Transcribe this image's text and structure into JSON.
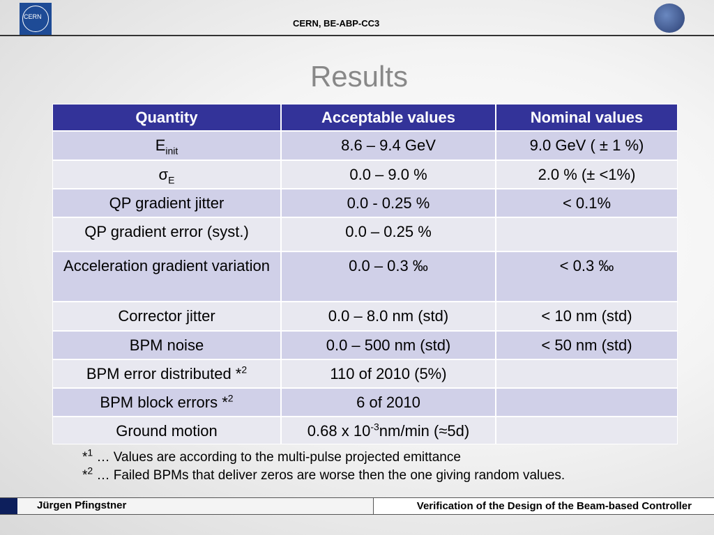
{
  "header": {
    "logo_text": "CERN",
    "org": "CERN, BE-ABP-CC3"
  },
  "title": "Results",
  "table": {
    "columns": [
      "Quantity",
      "Acceptable values",
      "Nominal values"
    ],
    "rows": [
      [
        [
          {
            "t": "E"
          },
          {
            "t": "init",
            "s": "sub"
          }
        ],
        [
          {
            "t": "8.6 – 9.4 GeV"
          }
        ],
        [
          {
            "t": "9.0 GeV (   ± 1 %)"
          }
        ]
      ],
      [
        [
          {
            "t": "σ"
          },
          {
            "t": "E",
            "s": "sub"
          }
        ],
        [
          {
            "t": "0.0 – 9.0 %"
          }
        ],
        [
          {
            "t": "2.0 % (± <1%)"
          }
        ]
      ],
      [
        [
          {
            "t": "QP gradient jitter"
          }
        ],
        [
          {
            "t": "0.0 - 0.25 %"
          }
        ],
        [
          {
            "t": "< 0.1%"
          }
        ]
      ],
      [
        [
          {
            "t": "QP gradient error (syst.)"
          }
        ],
        [
          {
            "t": "0.0 – 0.25 %"
          }
        ],
        []
      ],
      [
        [
          {
            "t": "Acceleration gradient variation"
          }
        ],
        [
          {
            "t": "0.0 – 0.3 ‰"
          }
        ],
        [
          {
            "t": "< 0.3 ‰"
          }
        ]
      ],
      [
        [
          {
            "t": "Corrector jitter"
          }
        ],
        [
          {
            "t": "0.0 – 8.0 nm (std)"
          }
        ],
        [
          {
            "t": "< 10 nm (std)"
          }
        ]
      ],
      [
        [
          {
            "t": "BPM noise"
          }
        ],
        [
          {
            "t": "0.0 – 500 nm (std)"
          }
        ],
        [
          {
            "t": "< 50 nm (std)"
          }
        ]
      ],
      [
        [
          {
            "t": "BPM error distributed *"
          },
          {
            "t": "2",
            "s": "sup"
          }
        ],
        [
          {
            "t": "110 of 2010 (5%)"
          }
        ],
        []
      ],
      [
        [
          {
            "t": "BPM block errors *"
          },
          {
            "t": "2",
            "s": "sup"
          }
        ],
        [
          {
            "t": "6 of 2010"
          }
        ],
        []
      ],
      [
        [
          {
            "t": "Ground motion"
          }
        ],
        [
          {
            "t": "0.68 x 10"
          },
          {
            "t": "-3",
            "s": "sup"
          },
          {
            "t": "nm/min (≈5d)"
          }
        ],
        []
      ]
    ]
  },
  "footnotes": [
    [
      {
        "t": "*"
      },
      {
        "t": "1",
        "s": "sup"
      },
      {
        "t": " … Values are according to the multi-pulse projected emittance"
      }
    ],
    [
      {
        "t": "*"
      },
      {
        "t": "2",
        "s": "sup"
      },
      {
        "t": " … Failed BPMs that deliver zeros are worse then the one giving random values."
      }
    ]
  ],
  "footer": {
    "author": "Jürgen Pfingstner",
    "talk": "Verification of the Design of the Beam-based Controller"
  }
}
